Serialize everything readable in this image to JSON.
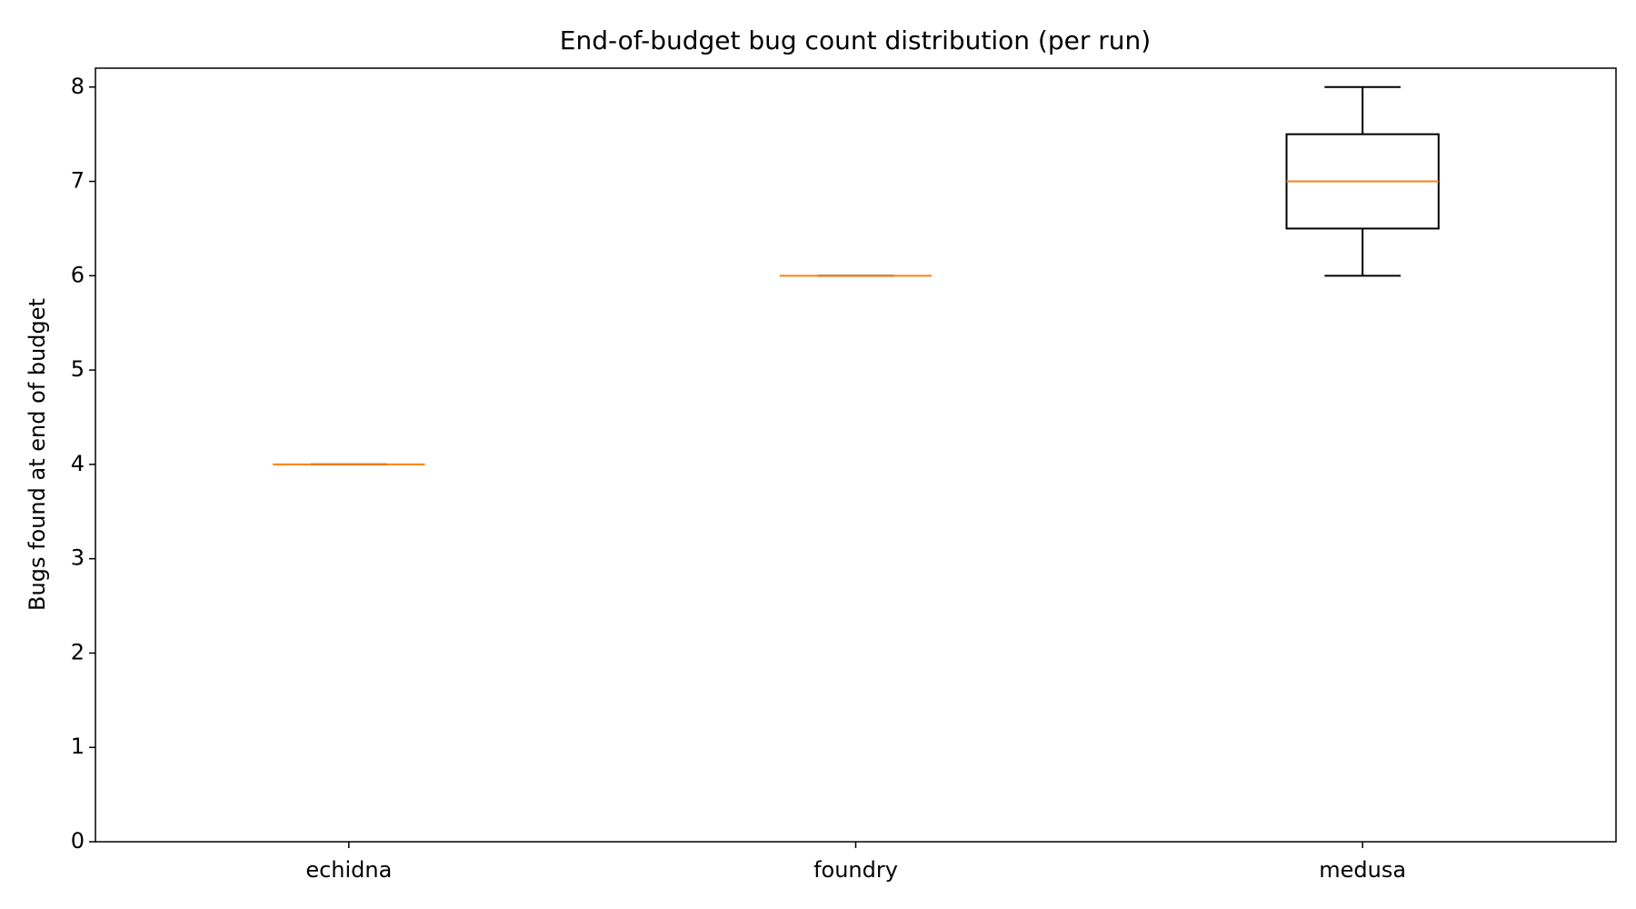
{
  "chart_data": {
    "type": "box",
    "title": "End-of-budget bug count distribution (per run)",
    "y_label": "Bugs found at end of budget",
    "categories": [
      "echidna",
      "foundry",
      "medusa"
    ],
    "min": [
      4,
      6,
      6
    ],
    "q1": [
      4,
      6,
      6.5
    ],
    "median": [
      4,
      6,
      7
    ],
    "q3": [
      4,
      6,
      7.5
    ],
    "max": [
      4,
      6,
      8
    ],
    "box_color": "#000000",
    "median_color": "#ff7f0e",
    "ylim": [
      0,
      8.2
    ],
    "yticks": [
      0,
      1,
      2,
      3,
      4,
      5,
      6,
      7,
      8
    ]
  }
}
